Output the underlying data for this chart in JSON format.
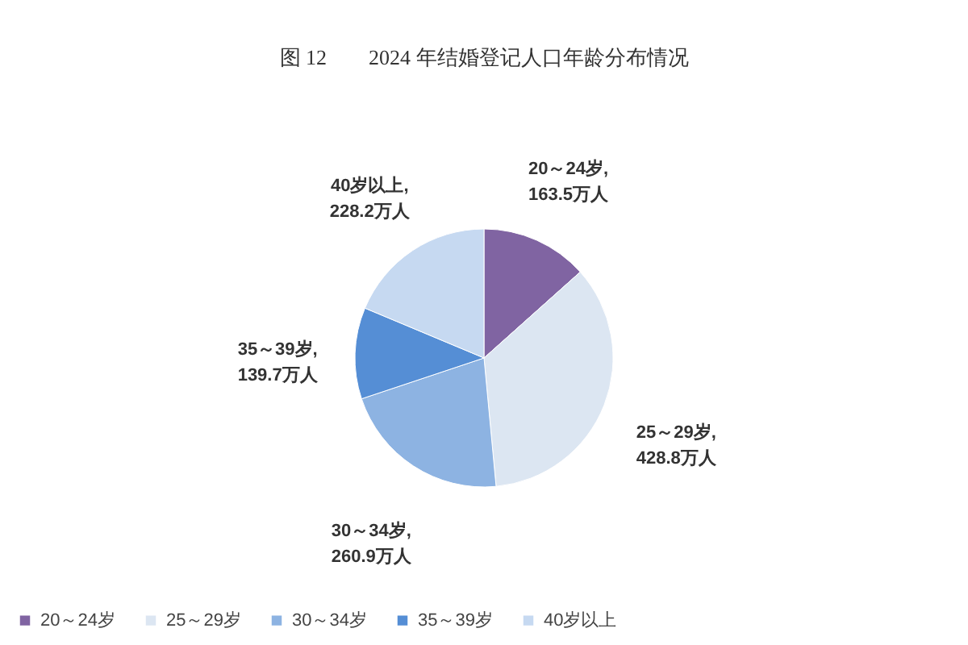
{
  "chart_data": {
    "type": "pie",
    "title": "图 12　　2024 年结婚登记人口年龄分布情况",
    "categories": [
      "20～24岁",
      "25～29岁",
      "30～34岁",
      "35～39岁",
      "40岁以上"
    ],
    "values": [
      163.5,
      428.8,
      260.9,
      139.7,
      228.2
    ],
    "colors": [
      "#8064a2",
      "#dce6f2",
      "#8db3e2",
      "#558ed5",
      "#c6d9f1"
    ],
    "value_labels": [
      "20～24岁,\n163.5万人",
      "25～29岁,\n428.8万人",
      "30～34岁,\n260.9万人",
      "35～39岁,\n139.7万人",
      "40岁以上,\n228.2万人"
    ],
    "legend": "bottom"
  }
}
